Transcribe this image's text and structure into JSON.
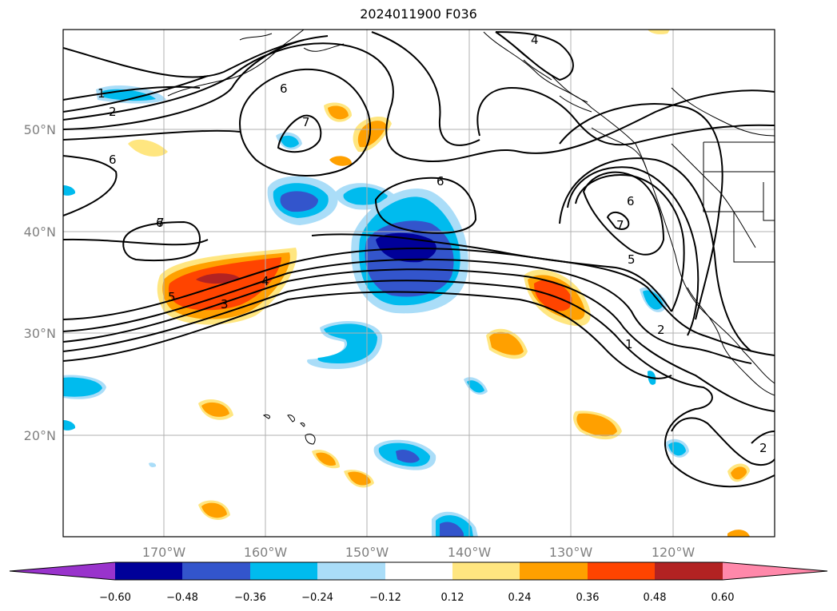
{
  "title": "2024011900 F036",
  "map": {
    "lat_ticks": [
      "50°N",
      "40°N",
      "30°N",
      "20°N"
    ],
    "lon_ticks": [
      "170°W",
      "160°W",
      "150°W",
      "140°W",
      "130°W",
      "120°W"
    ],
    "contour_labels": [
      "1",
      "2",
      "6",
      "7",
      "6",
      "7",
      "6",
      "6",
      "5",
      "4",
      "3",
      "6",
      "7",
      "5",
      "2",
      "1",
      "2",
      "4"
    ]
  },
  "colorbar": {
    "ticks": [
      "−0.60",
      "−0.48",
      "−0.36",
      "−0.24",
      "−0.12",
      "0.12",
      "0.24",
      "0.36",
      "0.48",
      "0.60"
    ],
    "colors": [
      "#9933cc",
      "#000099",
      "#3355cc",
      "#00bbee",
      "#aaddf8",
      "#ffffff",
      "#ffe680",
      "#ffa000",
      "#ff4400",
      "#b22222",
      "#ff88aa"
    ]
  }
}
